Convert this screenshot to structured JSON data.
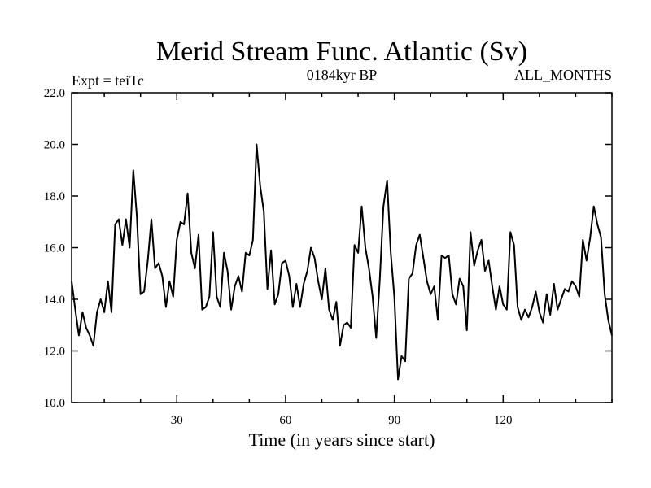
{
  "chart_data": {
    "type": "line",
    "title": "Merid Stream Func. Atlantic (Sv)",
    "subtitle_left": "Expt = teiTc",
    "subtitle_center": "0184kyr BP",
    "subtitle_right": "ALL_MONTHS",
    "xlabel": "Time (in years since start)",
    "ylabel": "",
    "xlim": [
      1,
      150
    ],
    "ylim": [
      10,
      22
    ],
    "xticks": [
      30,
      60,
      90,
      120
    ],
    "yticks": [
      10,
      12,
      14,
      16,
      18,
      20,
      22
    ],
    "ytick_labels": [
      "10.0",
      "12.0",
      "14.0",
      "16.0",
      "18.0",
      "20.0",
      "22.0"
    ],
    "grid": false,
    "series": [
      {
        "name": "",
        "x": [
          1,
          2,
          3,
          4,
          5,
          6,
          7,
          8,
          9,
          10,
          11,
          12,
          13,
          14,
          15,
          16,
          17,
          18,
          19,
          20,
          21,
          22,
          23,
          24,
          25,
          26,
          27,
          28,
          29,
          30,
          31,
          32,
          33,
          34,
          35,
          36,
          37,
          38,
          39,
          40,
          41,
          42,
          43,
          44,
          45,
          46,
          47,
          48,
          49,
          50,
          51,
          52,
          53,
          54,
          55,
          56,
          57,
          58,
          59,
          60,
          61,
          62,
          63,
          64,
          65,
          66,
          67,
          68,
          69,
          70,
          71,
          72,
          73,
          74,
          75,
          76,
          77,
          78,
          79,
          80,
          81,
          82,
          83,
          84,
          85,
          86,
          87,
          88,
          89,
          90,
          91,
          92,
          93,
          94,
          95,
          96,
          97,
          98,
          99,
          100,
          101,
          102,
          103,
          104,
          105,
          106,
          107,
          108,
          109,
          110,
          111,
          112,
          113,
          114,
          115,
          116,
          117,
          118,
          119,
          120,
          121,
          122,
          123,
          124,
          125,
          126,
          127,
          128,
          129,
          130,
          131,
          132,
          133,
          134,
          135,
          136,
          137,
          138,
          139,
          140,
          141,
          142,
          143,
          144,
          145,
          146,
          147,
          148,
          149,
          150
        ],
        "values": [
          14.7,
          13.6,
          12.6,
          13.5,
          12.9,
          12.6,
          12.2,
          13.5,
          14.0,
          13.5,
          14.7,
          13.5,
          16.9,
          17.1,
          16.1,
          17.1,
          16.0,
          19.0,
          17.2,
          14.2,
          14.3,
          15.5,
          17.1,
          15.2,
          15.4,
          14.9,
          13.7,
          14.7,
          14.1,
          16.3,
          17.0,
          16.9,
          18.1,
          15.8,
          15.2,
          16.5,
          13.6,
          13.7,
          14.1,
          16.6,
          14.1,
          13.7,
          15.8,
          15.1,
          13.6,
          14.5,
          14.9,
          14.3,
          15.8,
          15.7,
          16.3,
          20.0,
          18.4,
          17.4,
          14.4,
          15.9,
          13.8,
          14.2,
          15.4,
          15.5,
          14.9,
          13.7,
          14.6,
          13.7,
          14.6,
          15.1,
          16.0,
          15.6,
          14.7,
          14.0,
          15.2,
          13.6,
          13.2,
          13.9,
          12.2,
          13.0,
          13.1,
          12.9,
          16.1,
          15.8,
          17.6,
          16.0,
          15.2,
          14.1,
          12.5,
          14.8,
          17.6,
          18.6,
          15.8,
          14.1,
          10.9,
          11.8,
          11.6,
          14.8,
          15.0,
          16.1,
          16.5,
          15.6,
          14.7,
          14.2,
          14.5,
          13.2,
          15.7,
          15.6,
          15.7,
          14.2,
          13.8,
          14.8,
          14.5,
          12.8,
          16.6,
          15.3,
          15.9,
          16.3,
          15.1,
          15.5,
          14.5,
          13.6,
          14.5,
          13.8,
          13.6,
          16.6,
          16.1,
          13.7,
          13.2,
          13.6,
          13.3,
          13.7,
          14.3,
          13.5,
          13.1,
          14.2,
          13.4,
          14.6,
          13.6,
          14.0,
          14.4,
          14.3,
          14.7,
          14.5,
          14.1,
          16.3,
          15.5,
          16.4,
          17.6,
          16.9,
          16.4,
          14.2,
          13.2,
          12.6
        ]
      }
    ]
  }
}
